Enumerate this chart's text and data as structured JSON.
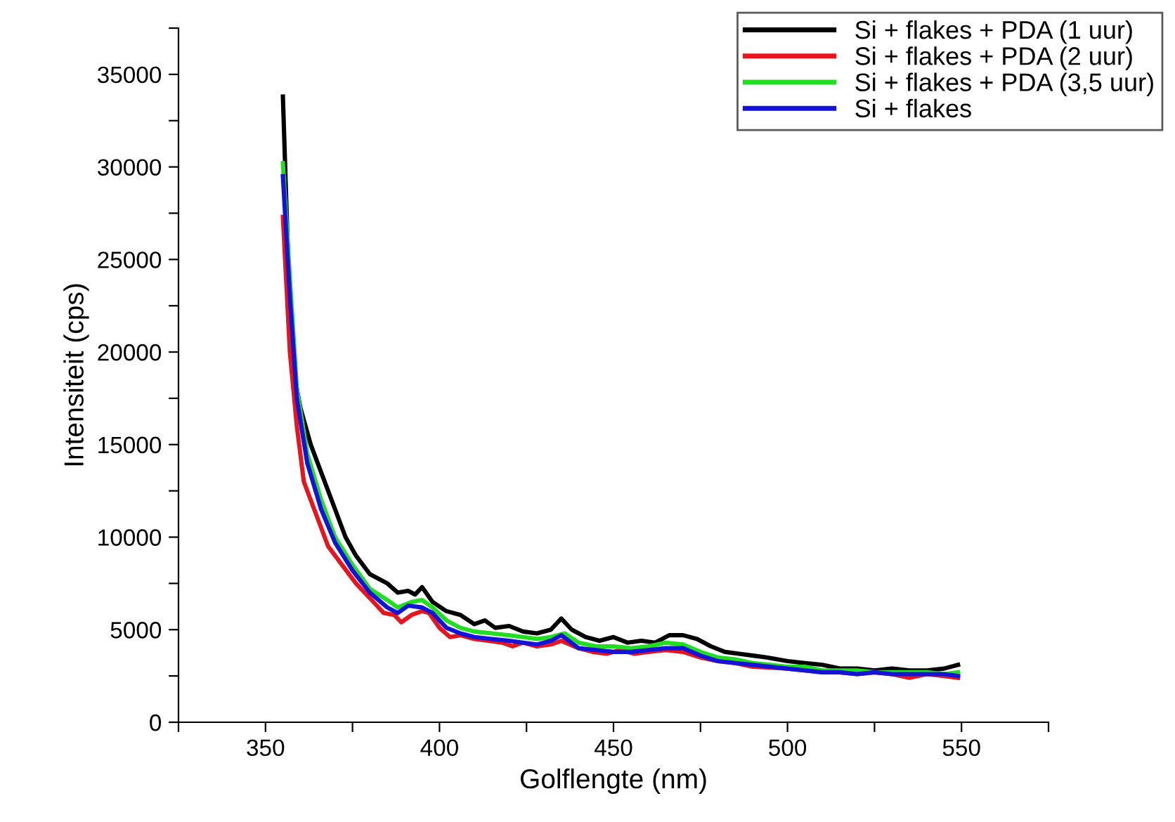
{
  "chart_data": {
    "type": "line",
    "xlabel": "Golflengte (nm)",
    "ylabel": "Intensiteit (cps)",
    "xlim": [
      325,
      575
    ],
    "xticks": [
      {
        "value": 325,
        "label": null
      },
      350,
      {
        "value": 375,
        "label": null
      },
      400,
      {
        "value": 425,
        "label": null
      },
      450,
      {
        "value": 475,
        "label": null
      },
      500,
      {
        "value": 525,
        "label": null
      },
      550,
      {
        "value": 575,
        "label": null
      }
    ],
    "ylim": [
      0,
      37500
    ],
    "yticks": [
      0,
      {
        "value": 2500,
        "label": null
      },
      5000,
      {
        "value": 7500,
        "label": null
      },
      10000,
      {
        "value": 12500,
        "label": null
      },
      15000,
      {
        "value": 17500,
        "label": null
      },
      20000,
      {
        "value": 22500,
        "label": null
      },
      25000,
      {
        "value": 27500,
        "label": null
      },
      30000,
      {
        "value": 32500,
        "label": null
      },
      35000,
      {
        "value": 37500,
        "label": null
      }
    ],
    "grid": false,
    "legend": "top right",
    "marker": "none",
    "line_style": "solid",
    "series": [
      {
        "name": "Si + flakes + PDA (1 uur)",
        "color": "#000000",
        "x": [
          355,
          356,
          357,
          358,
          360,
          363,
          366,
          370,
          373,
          376,
          380,
          385,
          388,
          391,
          393,
          395,
          398,
          402,
          406,
          410,
          413,
          416,
          420,
          424,
          428,
          432,
          435,
          438,
          442,
          446,
          450,
          454,
          458,
          462,
          466,
          470,
          474,
          478,
          482,
          486,
          490,
          494,
          500,
          505,
          510,
          515,
          520,
          525,
          530,
          535,
          540,
          545,
          549
        ],
        "values": [
          33800,
          28000,
          22000,
          19000,
          17000,
          15000,
          13500,
          11500,
          10000,
          9000,
          8000,
          7500,
          7000,
          7100,
          6900,
          7300,
          6500,
          6000,
          5800,
          5300,
          5500,
          5100,
          5200,
          4900,
          4800,
          5000,
          5600,
          5000,
          4600,
          4400,
          4600,
          4300,
          4400,
          4300,
          4700,
          4700,
          4500,
          4100,
          3800,
          3700,
          3600,
          3500,
          3300,
          3200,
          3100,
          2900,
          2900,
          2800,
          2900,
          2800,
          2800,
          2900,
          3100
        ]
      },
      {
        "name": "Si + flakes + PDA (2 uur)",
        "color": "#e8141e",
        "x": [
          355,
          357,
          359,
          361,
          364,
          368,
          372,
          376,
          380,
          384,
          387,
          389,
          392,
          395,
          397,
          400,
          403,
          406,
          410,
          414,
          418,
          421,
          424,
          428,
          432,
          435,
          440,
          444,
          448,
          452,
          456,
          460,
          465,
          470,
          475,
          480,
          485,
          490,
          495,
          500,
          505,
          510,
          515,
          520,
          525,
          530,
          535,
          540,
          545,
          549
        ],
        "values": [
          27300,
          20000,
          16000,
          13000,
          11500,
          9500,
          8500,
          7500,
          6700,
          5900,
          5800,
          5400,
          5800,
          6000,
          5900,
          5100,
          4600,
          4700,
          4500,
          4400,
          4300,
          4100,
          4300,
          4100,
          4200,
          4400,
          4000,
          3800,
          3700,
          3900,
          3700,
          3800,
          3900,
          3800,
          3500,
          3300,
          3200,
          3000,
          2950,
          2900,
          2800,
          2700,
          2700,
          2600,
          2700,
          2600,
          2400,
          2600,
          2500,
          2400
        ]
      },
      {
        "name": "Si + flakes + PDA (3,5 uur)",
        "color": "#22dd22",
        "x": [
          355,
          357,
          359,
          362,
          366,
          370,
          375,
          380,
          385,
          388,
          392,
          395,
          398,
          402,
          406,
          410,
          415,
          420,
          424,
          428,
          432,
          436,
          440,
          445,
          450,
          455,
          460,
          465,
          470,
          475,
          480,
          485,
          490,
          495,
          500,
          505,
          510,
          515,
          520,
          525,
          530,
          535,
          540,
          545,
          549
        ],
        "values": [
          30200,
          24000,
          18000,
          14500,
          12000,
          10000,
          8500,
          7200,
          6600,
          6200,
          6500,
          6600,
          6200,
          5500,
          5100,
          4900,
          4800,
          4700,
          4600,
          4500,
          4600,
          4800,
          4300,
          4100,
          4100,
          4000,
          4100,
          4300,
          4200,
          3800,
          3500,
          3400,
          3200,
          3100,
          3000,
          3000,
          2800,
          2800,
          2800,
          2700,
          2700,
          2700,
          2700,
          2600,
          2700
        ]
      },
      {
        "name": "Si + flakes",
        "color": "#1414d8",
        "x": [
          355,
          357,
          359,
          362,
          366,
          370,
          375,
          380,
          385,
          388,
          391,
          395,
          398,
          402,
          406,
          410,
          415,
          420,
          424,
          428,
          432,
          435,
          440,
          445,
          450,
          455,
          460,
          465,
          470,
          475,
          480,
          485,
          490,
          495,
          500,
          505,
          510,
          515,
          520,
          525,
          530,
          535,
          540,
          545,
          549
        ],
        "values": [
          29500,
          23000,
          17500,
          14000,
          11500,
          9700,
          8200,
          7000,
          6200,
          5900,
          6300,
          6200,
          5900,
          5100,
          4800,
          4600,
          4500,
          4400,
          4300,
          4200,
          4400,
          4700,
          4000,
          3900,
          3800,
          3800,
          3900,
          4000,
          4000,
          3600,
          3300,
          3200,
          3100,
          3000,
          2900,
          2800,
          2700,
          2700,
          2600,
          2700,
          2600,
          2600,
          2600,
          2600,
          2500
        ]
      }
    ]
  }
}
